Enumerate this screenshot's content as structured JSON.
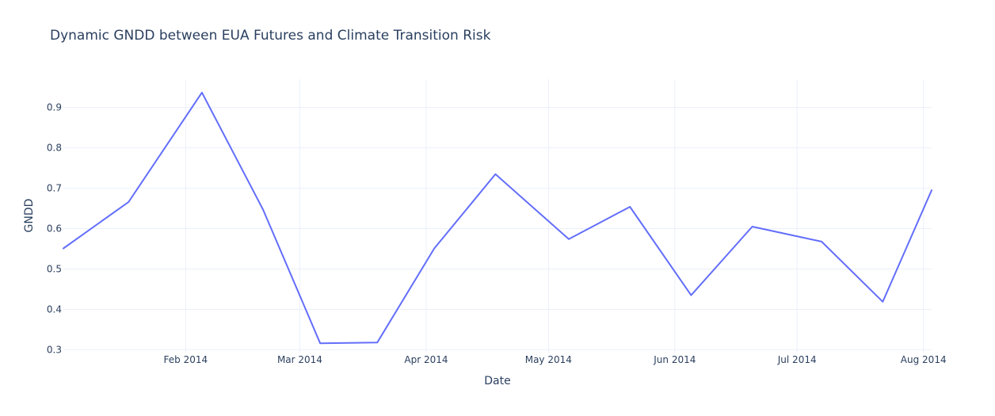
{
  "chart_data": {
    "type": "line",
    "title": "Dynamic GNDD between EUA Futures and Climate Transition Risk",
    "xlabel": "Date",
    "ylabel": "GNDD",
    "x_tick_labels": [
      "Feb 2014",
      "Mar 2014",
      "Apr 2014",
      "May 2014",
      "Jun 2014",
      "Jul 2014",
      "Aug 2014"
    ],
    "x_tick_dates": [
      "2014-02-01",
      "2014-03-01",
      "2014-04-01",
      "2014-05-01",
      "2014-06-01",
      "2014-07-01",
      "2014-08-01"
    ],
    "y_tick_labels": [
      "0.3",
      "0.4",
      "0.5",
      "0.6",
      "0.7",
      "0.8",
      "0.9"
    ],
    "y_ticks": [
      0.3,
      0.4,
      0.5,
      0.6,
      0.7,
      0.8,
      0.9
    ],
    "xlim": [
      "2014-01-02",
      "2014-08-03"
    ],
    "ylim": [
      0.293,
      0.97
    ],
    "grid": true,
    "line_color": "#636efa",
    "series": [
      {
        "x": [
          "2014-01-02",
          "2014-01-18",
          "2014-02-05",
          "2014-02-20",
          "2014-03-06",
          "2014-03-20",
          "2014-04-03",
          "2014-04-18",
          "2014-05-06",
          "2014-05-21",
          "2014-06-05",
          "2014-06-20",
          "2014-07-07",
          "2014-07-22",
          "2014-08-03"
        ],
        "y": [
          0.551,
          0.666,
          0.937,
          0.647,
          0.316,
          0.318,
          0.551,
          0.735,
          0.574,
          0.654,
          0.435,
          0.605,
          0.568,
          0.419,
          0.695
        ]
      }
    ]
  }
}
